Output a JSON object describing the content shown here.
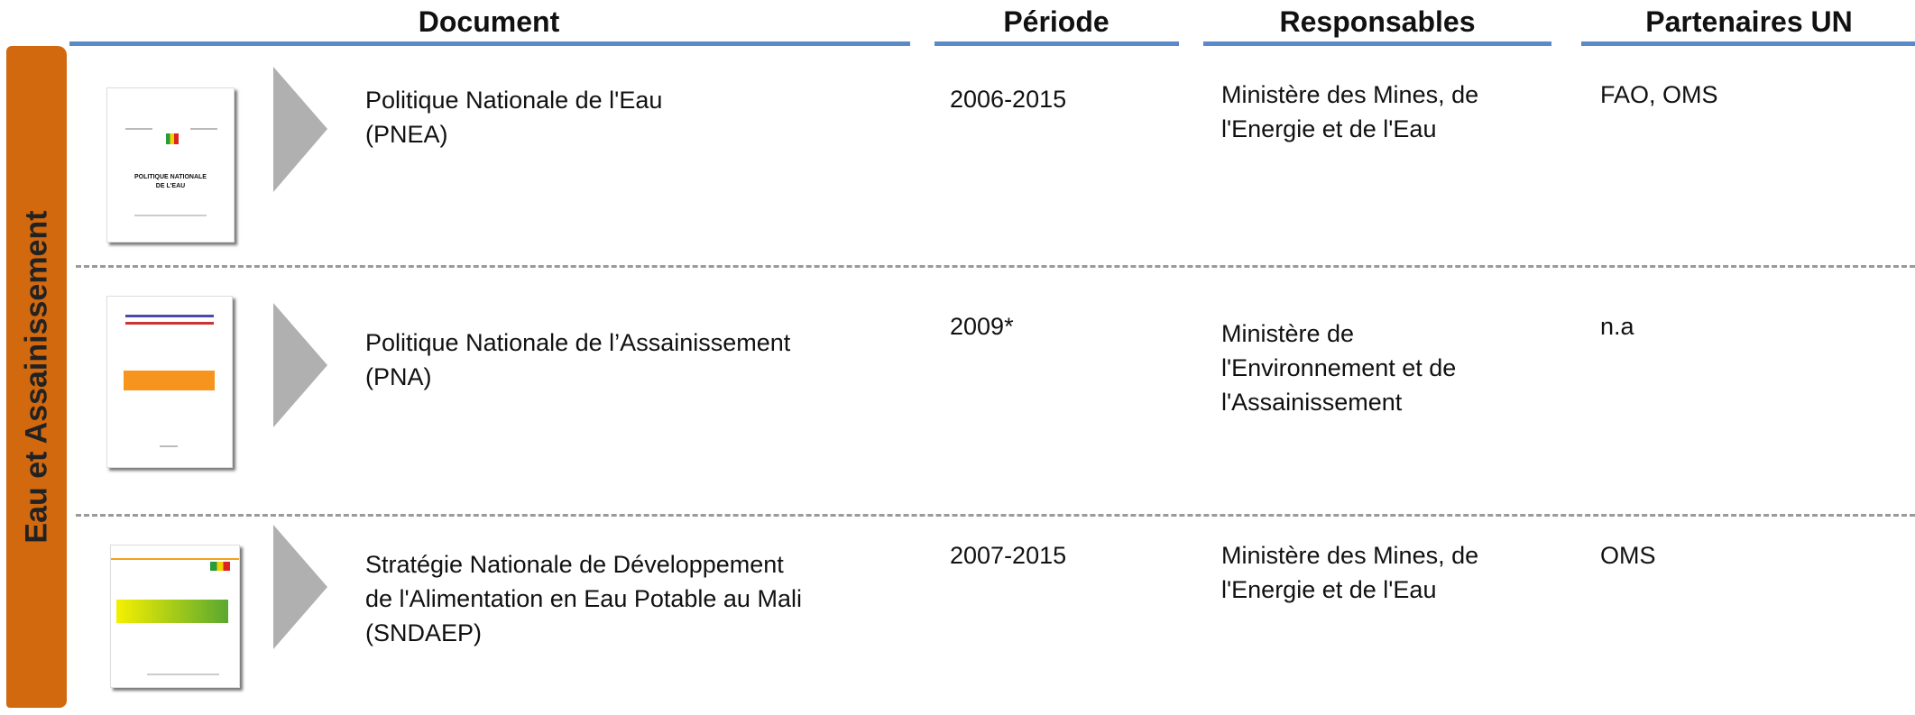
{
  "header": {
    "columns": [
      "Document",
      "Période",
      "Responsables",
      "Partenaires UN"
    ]
  },
  "side_label": "Eau et Assainissement",
  "rows": [
    {
      "document": [
        "Politique Nationale de l'Eau",
        "(PNEA)"
      ],
      "thumbnail_title": [
        "POLITIQUE NATIONALE",
        "DE L'EAU"
      ],
      "period": "2006-2015",
      "responsables": [
        "Ministère des Mines, de",
        "l'Energie et de l'Eau"
      ],
      "partners": "FAO, OMS"
    },
    {
      "document": [
        "Politique Nationale de l’Assainissement",
        "(PNA)"
      ],
      "period": "2009*",
      "responsables": [
        "Ministère de",
        "l'Environnement et de",
        "l'Assainissement"
      ],
      "partners": "n.a"
    },
    {
      "document": [
        "Stratégie Nationale de Développement",
        "de l'Alimentation en Eau Potable au Mali",
        "(SNDAEP)"
      ],
      "period": "2007-2015",
      "responsables": [
        "Ministère des Mines, de",
        "l'Energie et de l'Eau"
      ],
      "partners": "OMS"
    }
  ]
}
